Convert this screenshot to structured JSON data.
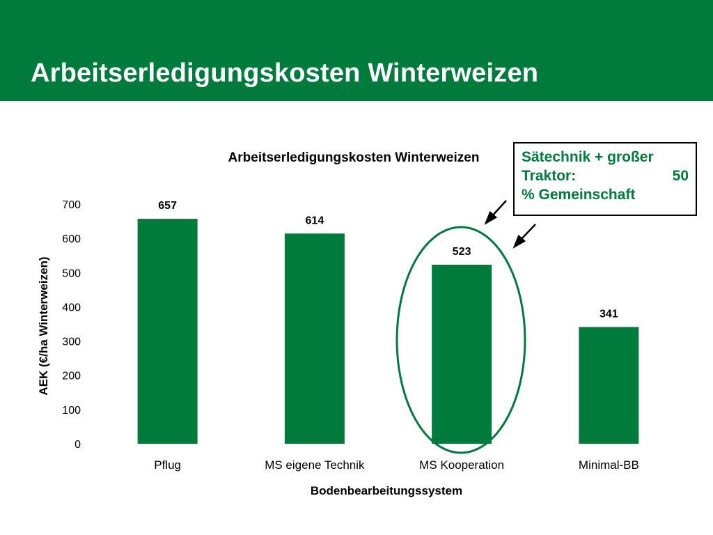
{
  "header": {
    "title": "Arbeitserledigungskosten Winterweizen",
    "color": "#017b3c"
  },
  "callout": {
    "line1": "Sätechnik + großer",
    "line2_left": "Traktor:",
    "line2_right": "50",
    "line3": "% Gemeinschaft",
    "text_color": "#017b3c"
  },
  "highlight": {
    "category": "MS Kooperation",
    "color": "#017b3c"
  },
  "chart_data": {
    "type": "bar",
    "title": "Arbeitserledigungskosten Winterweizen",
    "categories": [
      "Pflug",
      "MS eigene Technik",
      "MS Kooperation",
      "Minimal-BB"
    ],
    "values": [
      657,
      614,
      523,
      341
    ],
    "xlabel": "Bodenbearbeitungssystem",
    "ylabel": "AEK (€/ha Winterweizen)",
    "ylim": [
      0,
      700
    ],
    "yticks": [
      0,
      100,
      200,
      300,
      400,
      500,
      600,
      700
    ],
    "grid": false,
    "legend": "none",
    "bar_color": "#017b3c"
  }
}
